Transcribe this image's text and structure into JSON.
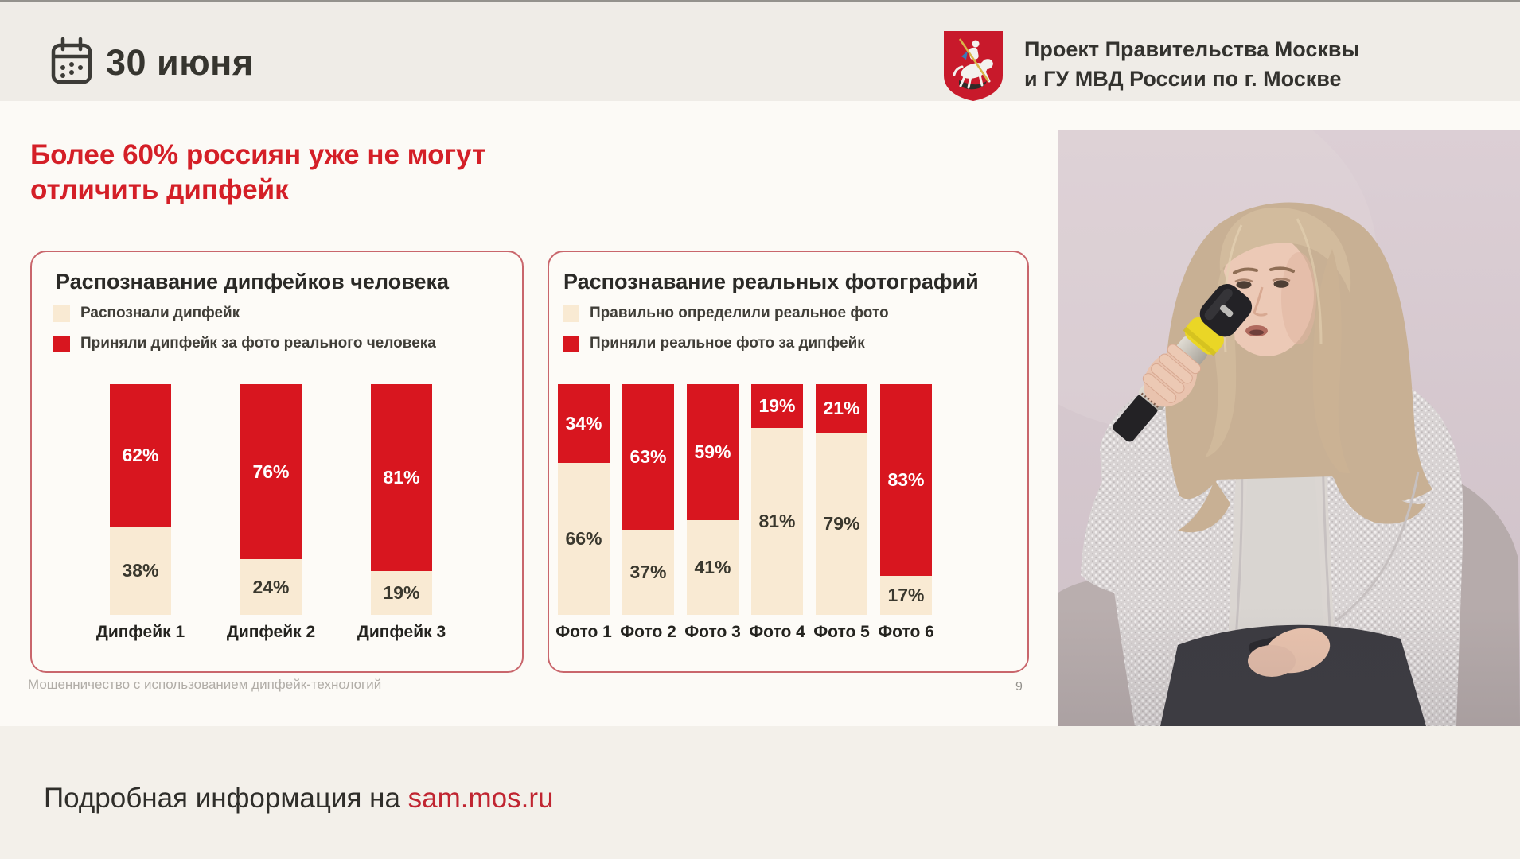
{
  "header": {
    "date_label": "30 июня",
    "project_line1": "Проект Правительства Москвы",
    "project_line2": "и ГУ МВД России по г. Москве"
  },
  "slide": {
    "title_line1": "Более 60% россиян уже не могут",
    "title_line2": "отличить дипфейк",
    "footnote": "Мошенничество с использованием дипфейк-технологий",
    "page_number": "9"
  },
  "footer": {
    "text_prefix": "Подробная информация на ",
    "link": "sam.mos.ru"
  },
  "icons": {
    "calendar": "calendar-icon",
    "coat_of_arms": "moscow-coat-of-arms-icon",
    "speaker": "speaker-photo"
  },
  "colors": {
    "accent_red": "#d8161f",
    "cream": "#f9ead3",
    "title_red": "#d41f27",
    "panel_border": "#c9666c",
    "link_red": "#c02531",
    "photo_background": "#d5c6cc"
  },
  "chart_data": [
    {
      "type": "bar",
      "stacked": true,
      "title": "Распознавание дипфейков человека",
      "categories": [
        "Дипфейк 1",
        "Дипфейк 2",
        "Дипфейк 3"
      ],
      "series": [
        {
          "name": "Распознали дипфейк",
          "color_key": "cream",
          "position": "bottom",
          "values": [
            38,
            24,
            19
          ]
        },
        {
          "name": "Приняли дипфейк за фото реального человека",
          "color_key": "accent_red",
          "position": "top",
          "values": [
            62,
            76,
            81
          ]
        }
      ],
      "ylim": [
        0,
        100
      ],
      "unit": "%",
      "grid": false,
      "legend_position": "top-left"
    },
    {
      "type": "bar",
      "stacked": true,
      "title": "Распознавание реальных фотографий",
      "categories": [
        "Фото 1",
        "Фото 2",
        "Фото 3",
        "Фото 4",
        "Фото 5",
        "Фото 6"
      ],
      "series": [
        {
          "name": "Правильно определили реальное фото",
          "color_key": "cream",
          "position": "bottom",
          "values": [
            66,
            37,
            41,
            81,
            79,
            17
          ]
        },
        {
          "name": "Приняли реальное фото за дипфейк",
          "color_key": "accent_red",
          "position": "top",
          "values": [
            34,
            63,
            59,
            19,
            21,
            83
          ]
        }
      ],
      "ylim": [
        0,
        100
      ],
      "unit": "%",
      "grid": false,
      "legend_position": "top-left"
    }
  ]
}
